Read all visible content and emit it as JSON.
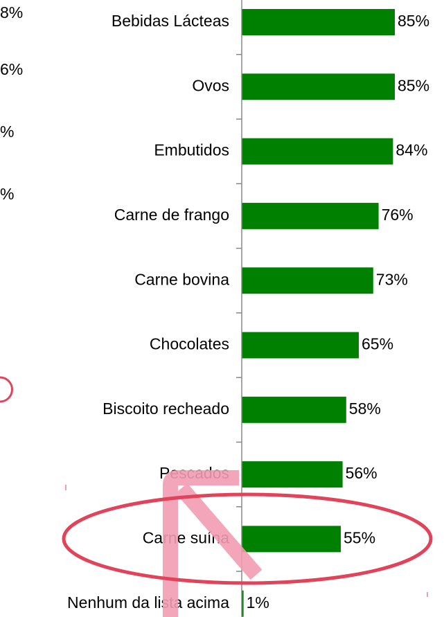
{
  "chart_data": {
    "type": "bar",
    "orientation": "horizontal",
    "categories": [
      "Bebidas Lácteas",
      "Ovos",
      "Embutidos",
      "Carne de frango",
      "Carne bovina",
      "Chocolates",
      "Biscoito recheado",
      "Pescados",
      "Carne suína",
      "Nenhum da lista acima"
    ],
    "values": [
      85,
      85,
      84,
      76,
      73,
      65,
      58,
      56,
      55,
      1
    ],
    "value_labels": [
      "85%",
      "85%",
      "84%",
      "76%",
      "73%",
      "65%",
      "58%",
      "56%",
      "55%",
      "1%"
    ],
    "color": "#008000",
    "annotations": [
      "8%",
      "6%",
      "%",
      "%"
    ]
  }
}
